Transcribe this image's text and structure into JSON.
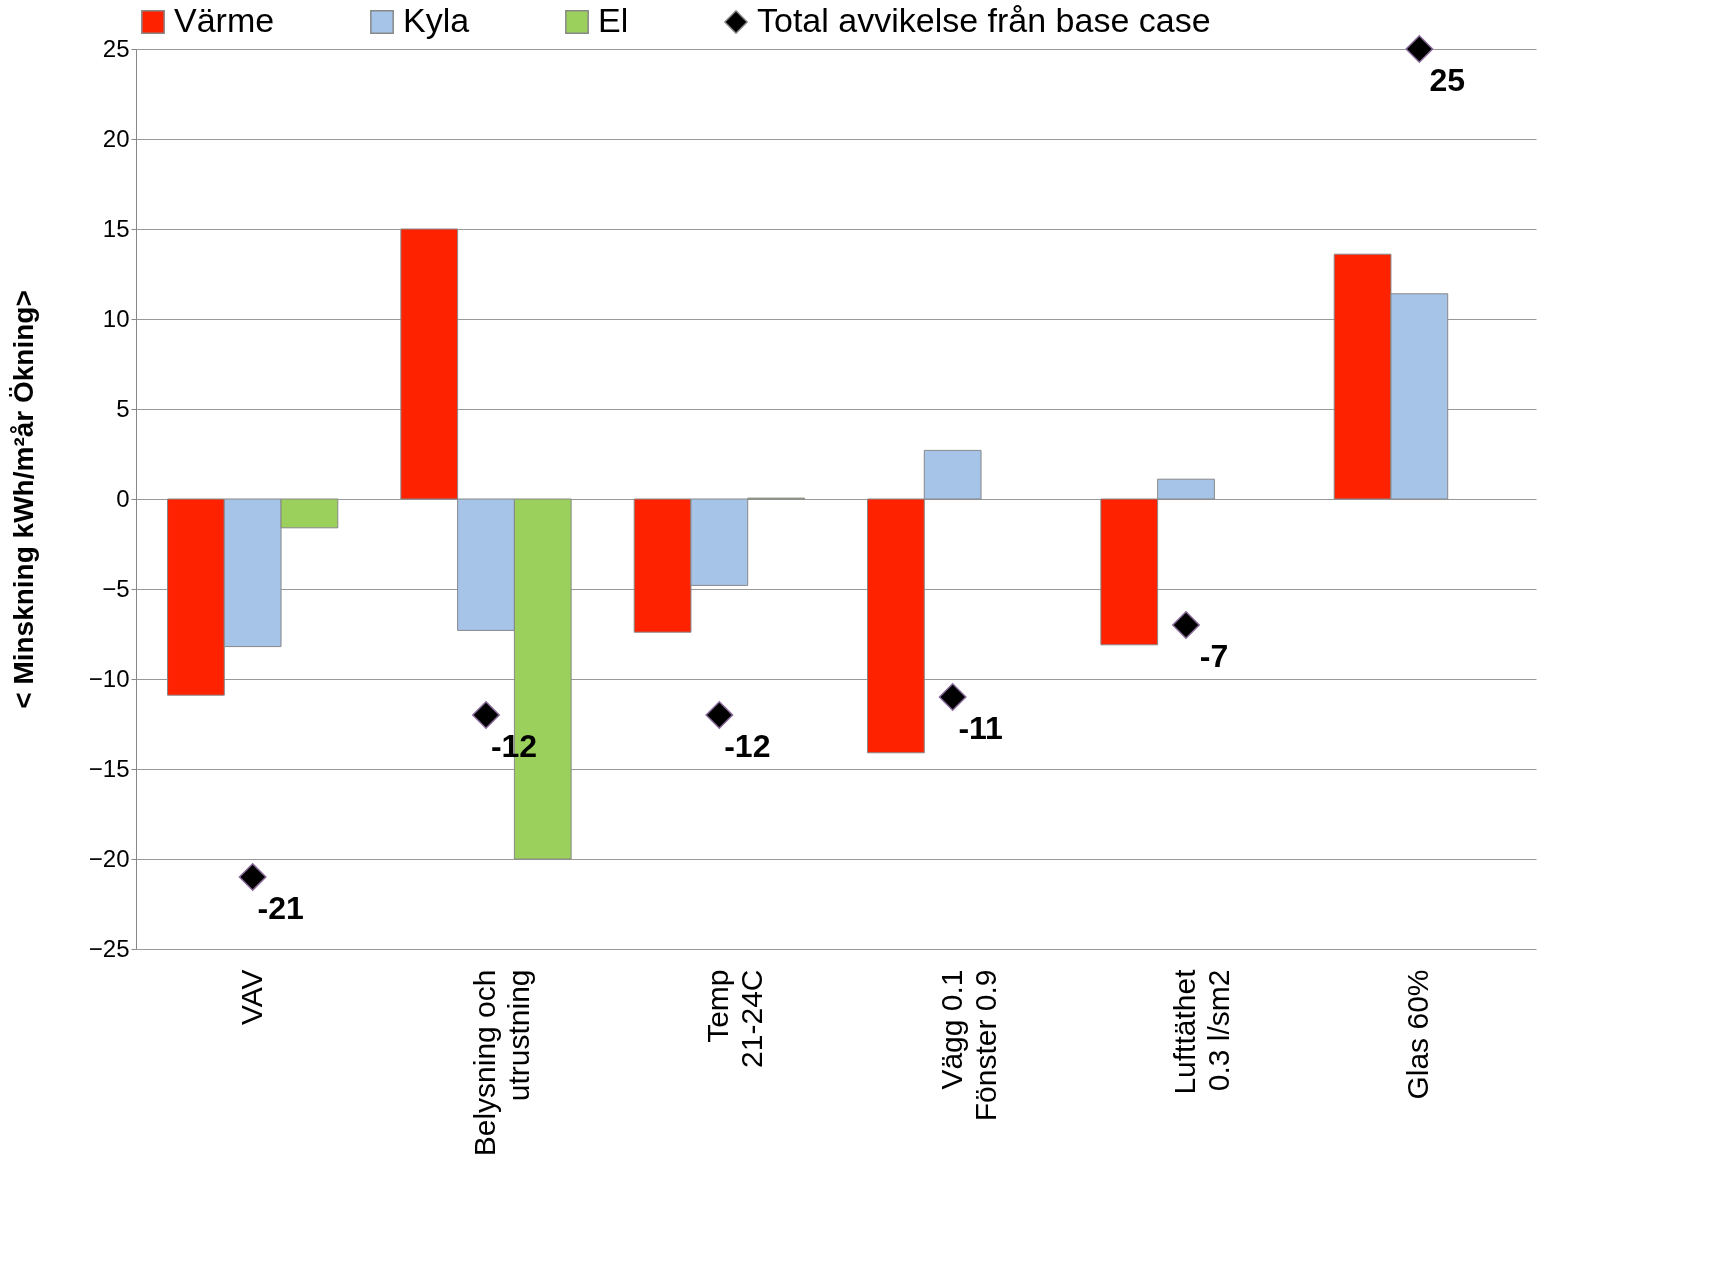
{
  "chart_data": {
    "type": "bar",
    "ylabel": "< Minskning       kWh/m²år       Ökning>",
    "categories": [
      "VAV",
      "Belysning och utrustning",
      "Temp 21-24C",
      "Vägg 0.1 Fönster 0.9",
      "Lufttäthet 0.3 l/sm2",
      "Glas 60%"
    ],
    "series": [
      {
        "name": "Värme",
        "color": "#ff2200",
        "values": [
          -10.9,
          15,
          -7.4,
          -14.1,
          -8.1,
          13.6
        ]
      },
      {
        "name": "Kyla",
        "color": "#a6c4e8",
        "values": [
          -8.2,
          -7.3,
          -4.8,
          2.7,
          1.1,
          11.4
        ]
      },
      {
        "name": "El",
        "color": "#9bd05c",
        "values": [
          -1.6,
          -20,
          0.05,
          null,
          null,
          null
        ]
      },
      {
        "name": "Total avvikelse från base case",
        "type": "scatter",
        "marker": "diamond",
        "color": "#000000",
        "values": [
          -21,
          -12,
          -12,
          -11,
          -7,
          25
        ],
        "value_labels": [
          "-21",
          "-12",
          "-12",
          "-11",
          "-7",
          "25"
        ]
      }
    ],
    "ylim": [
      -25,
      25
    ],
    "yticks": [
      -25,
      -20,
      -15,
      -10,
      -5,
      0,
      5,
      10,
      15,
      20,
      25
    ],
    "grid": "y",
    "legend": "top"
  }
}
